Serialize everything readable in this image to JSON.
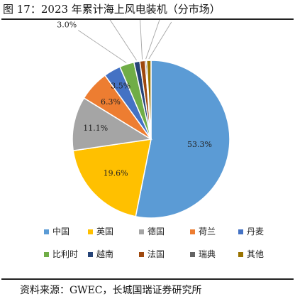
{
  "figure": {
    "title": "图 17：2023 年累计海上风电装机（分市场）",
    "source": "资料来源：GWEC，长城国瑞证券研究所"
  },
  "chart_data": {
    "type": "pie",
    "title": "",
    "legend_position": "bottom",
    "slices": [
      {
        "name": "中国",
        "value": 53.3,
        "label": "53.3%",
        "color": "#5b9bd5"
      },
      {
        "name": "英国",
        "value": 19.6,
        "label": "19.6%",
        "color": "#ffc000"
      },
      {
        "name": "德国",
        "value": 11.1,
        "label": "11.1%",
        "color": "#a5a5a5"
      },
      {
        "name": "荷兰",
        "value": 6.3,
        "label": "6.3%",
        "color": "#ed7d31"
      },
      {
        "name": "丹麦",
        "value": 3.5,
        "label": "3.5%",
        "color": "#4472c4"
      },
      {
        "name": "比利时",
        "value": 3.0,
        "label": "3.0%",
        "color": "#70ad47"
      },
      {
        "name": "越南",
        "value": 1.2,
        "label": "1.2%",
        "color": "#264478"
      },
      {
        "name": "法国",
        "value": 1.1,
        "label": "1.1%",
        "color": "#9e480e"
      },
      {
        "name": "瑞典",
        "value": 0.3,
        "label": "0.3%",
        "color": "#636363"
      },
      {
        "name": "其他",
        "value": 0.9,
        "label": "0.9%",
        "color": "#997300"
      }
    ]
  }
}
